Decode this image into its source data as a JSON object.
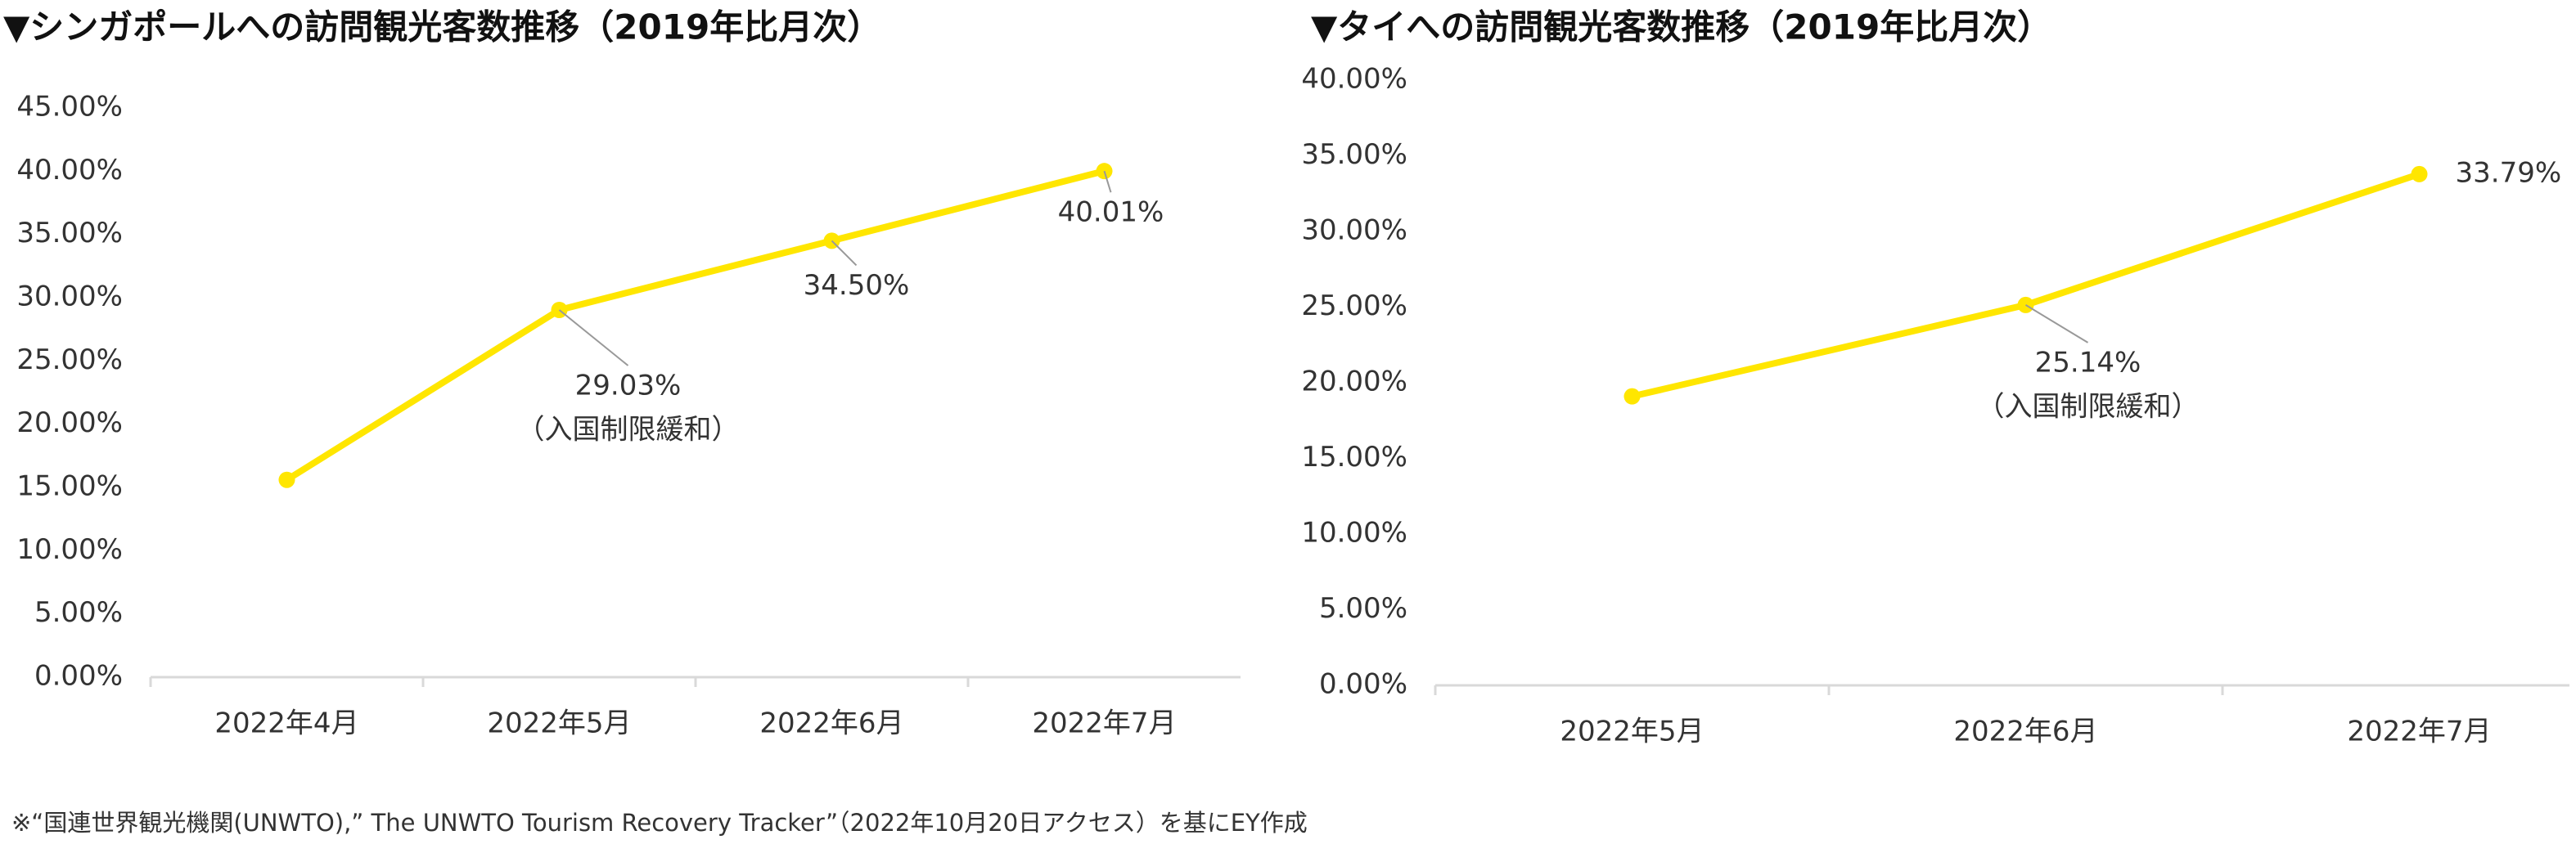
{
  "chart_data": [
    {
      "type": "line",
      "title": "▼シンガポールへの訪問観光客数推移（2019年比月次）",
      "categories": [
        "2022年4月",
        "2022年5月",
        "2022年6月",
        "2022年7月"
      ],
      "values": [
        15.6,
        29.03,
        34.5,
        40.01
      ],
      "value_labels": [
        null,
        "29.03%",
        "34.50%",
        "40.01%"
      ],
      "annotation": "（入国制限緩和）",
      "color": "#ffe600",
      "ylim": [
        0,
        45
      ],
      "yticks": [
        {
          "value": 0,
          "label": "0.00%"
        },
        {
          "value": 5,
          "label": "5.00%"
        },
        {
          "value": 10,
          "label": "10.00%"
        },
        {
          "value": 15,
          "label": "15.00%"
        },
        {
          "value": 20,
          "label": "20.00%"
        },
        {
          "value": 25,
          "label": "25.00%"
        },
        {
          "value": 30,
          "label": "30.00%"
        },
        {
          "value": 35,
          "label": "35.00%"
        },
        {
          "value": 40,
          "label": "40.00%"
        },
        {
          "value": 45,
          "label": "45.00%"
        }
      ]
    },
    {
      "type": "line",
      "title": "▼タイへの訪問観光客数推移（2019年比月次）",
      "categories": [
        "2022年5月",
        "2022年6月",
        "2022年7月"
      ],
      "values": [
        19.1,
        25.14,
        33.79
      ],
      "value_labels": [
        null,
        "25.14%",
        "33.79%"
      ],
      "annotation": "（入国制限緩和）",
      "color": "#ffe600",
      "ylim": [
        0,
        40
      ],
      "yticks": [
        {
          "value": 0,
          "label": "0.00%"
        },
        {
          "value": 5,
          "label": "5.00%"
        },
        {
          "value": 10,
          "label": "10.00%"
        },
        {
          "value": 15,
          "label": "15.00%"
        },
        {
          "value": 20,
          "label": "20.00%"
        },
        {
          "value": 25,
          "label": "25.00%"
        },
        {
          "value": 30,
          "label": "30.00%"
        },
        {
          "value": 35,
          "label": "35.00%"
        },
        {
          "value": 40,
          "label": "40.00%"
        }
      ]
    }
  ],
  "footnote": "※“国連世界観光機関(UNWTO),” The UNWTO Tourism Recovery Tracker”（2022年10月20日アクセス）を基にEY作成"
}
